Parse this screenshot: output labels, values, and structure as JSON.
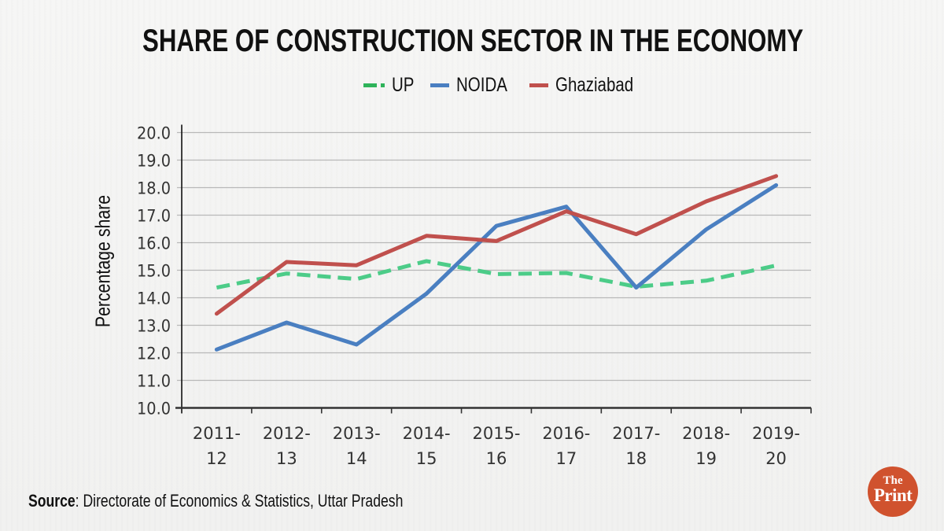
{
  "title": "SHARE OF CONSTRUCTION SECTOR IN THE ECONOMY",
  "source": {
    "label": "Source",
    "text": ": Directorate of Economics & Statistics, Uttar Pradesh"
  },
  "logo": {
    "line1": "The",
    "line2": "Print"
  },
  "colors": {
    "UP": "#4ccc88",
    "NOIDA": "#4a7fc1",
    "Ghaziabad": "#c0504d"
  },
  "chart_data": {
    "type": "line",
    "title": "SHARE OF CONSTRUCTION SECTOR IN THE ECONOMY",
    "xlabel": "",
    "ylabel": "Percentage share",
    "ylim": [
      10.0,
      20.0
    ],
    "yticks": [
      "10.0",
      "11.0",
      "12.0",
      "13.0",
      "14.0",
      "15.0",
      "16.0",
      "17.0",
      "18.0",
      "19.0",
      "20.0"
    ],
    "grid": true,
    "legend_position": "top-center",
    "categories": [
      [
        "2011-",
        "12"
      ],
      [
        "2012-",
        "13"
      ],
      [
        "2013-",
        "14"
      ],
      [
        "2014-",
        "15"
      ],
      [
        "2015-",
        "16"
      ],
      [
        "2016-",
        "17"
      ],
      [
        "2017-",
        "18"
      ],
      [
        "2018-",
        "19"
      ],
      [
        "2019-",
        "20"
      ]
    ],
    "series": [
      {
        "name": "UP",
        "style": "dashed",
        "values": [
          14.37,
          14.88,
          14.68,
          15.33,
          14.86,
          14.9,
          14.4,
          14.62,
          15.17
        ]
      },
      {
        "name": "NOIDA",
        "style": "solid",
        "values": [
          12.12,
          13.1,
          12.3,
          14.15,
          16.61,
          17.31,
          14.37,
          16.48,
          18.09
        ]
      },
      {
        "name": "Ghaziabad",
        "style": "solid",
        "values": [
          13.42,
          15.3,
          15.18,
          16.25,
          16.06,
          17.14,
          16.31,
          17.5,
          18.42
        ]
      }
    ]
  }
}
